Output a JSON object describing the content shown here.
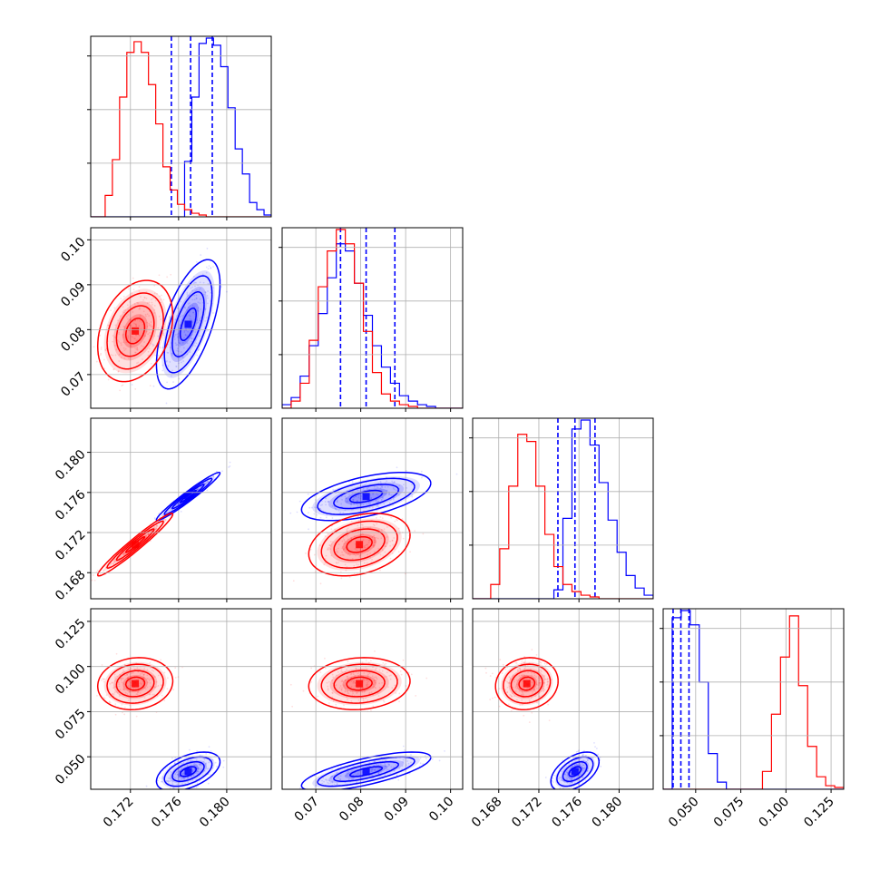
{
  "chart_data": {
    "type": "corner",
    "grid": true,
    "colors": {
      "blue": "#0000ff",
      "red": "#ff0000",
      "grid": "#b0b0b0"
    },
    "parameters": [
      {
        "ticks": [
          "0.172",
          "0.176",
          "0.180"
        ],
        "tick_values": [
          0.172,
          0.176,
          0.18
        ],
        "range": [
          0.1687,
          0.1837
        ]
      },
      {
        "ticks": [
          "0.07",
          "0.08",
          "0.09",
          "0.10"
        ],
        "tick_values": [
          0.07,
          0.08,
          0.09,
          0.1
        ],
        "range": [
          0.0625,
          0.1027
        ]
      },
      {
        "ticks": [
          "0.168",
          "0.172",
          "0.176",
          "0.180"
        ],
        "tick_values": [
          0.168,
          0.172,
          0.176,
          0.18
        ],
        "range": [
          0.1654,
          0.1834
        ]
      },
      {
        "ticks": [
          "0.050",
          "0.075",
          "0.100",
          "0.125"
        ],
        "tick_values": [
          0.05,
          0.075,
          0.1,
          0.125
        ],
        "range": [
          0.032,
          0.132
        ]
      }
    ],
    "series": [
      {
        "color": "#0000ff",
        "quantiles": [
          [
            0.1754,
            0.177,
            0.1788
          ],
          [
            0.0755,
            0.0812,
            0.0876
          ],
          [
            0.1739,
            0.1756,
            0.1776
          ],
          [
            0.0375,
            0.0418,
            0.0463
          ]
        ],
        "histograms": [
          [
            0,
            0,
            0,
            0,
            0,
            0,
            0,
            0,
            0,
            0,
            0,
            0,
            0,
            0.31,
            0.67,
            0.97,
            1.0,
            0.96,
            0.84,
            0.61,
            0.38,
            0.24,
            0.08,
            0.04,
            0.01
          ],
          [
            0.02,
            0.06,
            0.18,
            0.35,
            0.53,
            0.73,
            0.92,
            0.88,
            0.7,
            0.52,
            0.35,
            0.23,
            0.14,
            0.07,
            0.04,
            0.02,
            0.01,
            0,
            0,
            0
          ],
          [
            0,
            0,
            0,
            0,
            0,
            0,
            0,
            0,
            0,
            0.05,
            0.45,
            0.95,
            1.0,
            0.86,
            0.65,
            0.44,
            0.26,
            0.13,
            0.06,
            0.02
          ],
          [
            0,
            0.96,
            1.0,
            0.92,
            0.6,
            0.2,
            0.04,
            0,
            0,
            0,
            0,
            0,
            0,
            0,
            0,
            0,
            0,
            0,
            0,
            0
          ]
        ],
        "contours": {
          "1_0": {
            "mean": [
              0.1768,
              0.0812
            ],
            "sd": [
              0.0011,
              0.006
            ],
            "rho": 0.62
          },
          "2_0": {
            "mean": [
              0.1768,
              0.1756
            ],
            "sd": [
              0.0011,
              0.001
            ],
            "rho": 0.97
          },
          "2_1": {
            "mean": [
              0.0812,
              0.1756
            ],
            "sd": [
              0.006,
              0.001
            ],
            "rho": 0.55
          },
          "3_0": {
            "mean": [
              0.1768,
              0.0418
            ],
            "sd": [
              0.0011,
              0.0045
            ],
            "rho": 0.5
          },
          "3_1": {
            "mean": [
              0.0812,
              0.0418
            ],
            "sd": [
              0.006,
              0.0045
            ],
            "rho": 0.72
          },
          "3_2": {
            "mean": [
              0.1756,
              0.0418
            ],
            "sd": [
              0.001,
              0.0045
            ],
            "rho": 0.5
          }
        }
      },
      {
        "color": "#ff0000",
        "quantiles": null,
        "histograms": [
          [
            0,
            0,
            0.12,
            0.32,
            0.67,
            0.92,
            0.98,
            0.92,
            0.74,
            0.52,
            0.28,
            0.15,
            0.07,
            0.04,
            0.02,
            0.01,
            0,
            0,
            0,
            0,
            0,
            0,
            0,
            0,
            0
          ],
          [
            0,
            0.04,
            0.14,
            0.38,
            0.68,
            0.88,
            1.0,
            0.92,
            0.7,
            0.43,
            0.2,
            0.08,
            0.04,
            0.02,
            0.01,
            0,
            0,
            0,
            0,
            0
          ],
          [
            0,
            0,
            0.08,
            0.28,
            0.63,
            0.92,
            0.88,
            0.63,
            0.36,
            0.18,
            0.08,
            0.04,
            0.02,
            0.01,
            0,
            0,
            0,
            0,
            0,
            0
          ],
          [
            0,
            0,
            0,
            0,
            0,
            0,
            0,
            0,
            0,
            0,
            0,
            0.1,
            0.42,
            0.74,
            0.97,
            0.58,
            0.24,
            0.07,
            0.02,
            0.01
          ]
        ],
        "contours": {
          "1_0": {
            "mean": [
              0.1724,
              0.0797
            ],
            "sd": [
              0.0013,
              0.0047
            ],
            "rho": 0.3
          },
          "2_0": {
            "mean": [
              0.1724,
              0.1708
            ],
            "sd": [
              0.0013,
              0.0013
            ],
            "rho": 0.97
          },
          "2_1": {
            "mean": [
              0.0797,
              0.1708
            ],
            "sd": [
              0.0047,
              0.0013
            ],
            "rho": 0.3
          },
          "3_0": {
            "mean": [
              0.1724,
              0.0905
            ],
            "sd": [
              0.0013,
              0.006
            ],
            "rho": 0.1
          },
          "3_1": {
            "mean": [
              0.0797,
              0.0905
            ],
            "sd": [
              0.0047,
              0.006
            ],
            "rho": 0.1
          },
          "3_2": {
            "mean": [
              0.1708,
              0.0905
            ],
            "sd": [
              0.0013,
              0.006
            ],
            "rho": 0.1
          }
        }
      }
    ]
  }
}
